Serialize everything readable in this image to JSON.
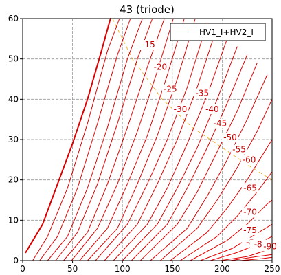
{
  "chart_data": {
    "type": "line",
    "title": "43 (triode)",
    "xlabel": "",
    "ylabel": "",
    "xlim": [
      0,
      250
    ],
    "ylim": [
      0,
      60
    ],
    "xticks": [
      0,
      50,
      100,
      150,
      200,
      250
    ],
    "yticks": [
      0,
      10,
      20,
      30,
      40,
      50,
      60
    ],
    "grid": true,
    "legend_position": "top-right",
    "legend": [
      "HV1_I+HV2_I"
    ],
    "colors": {
      "curve": "#dd0000",
      "load_line": "#f0a000",
      "grid": "#999999"
    },
    "series": [
      {
        "name": "HV1_I+HV2_I",
        "grid_voltage_label": "0",
        "x": [
          3,
          20,
          35,
          50,
          65,
          79,
          88
        ],
        "y": [
          2,
          9,
          19,
          29,
          40,
          52,
          60
        ]
      },
      {
        "grid_voltage_label": "",
        "x": [
          10,
          25,
          45,
          65,
          85,
          97
        ],
        "y": [
          0,
          6,
          18,
          34,
          52,
          60
        ]
      },
      {
        "grid_voltage_label": "",
        "x": [
          17,
          35,
          55,
          75,
          95,
          108
        ],
        "y": [
          0,
          6,
          18,
          34,
          51,
          60
        ]
      },
      {
        "grid_voltage_label": "",
        "x": [
          25,
          45,
          65,
          85,
          105,
          120
        ],
        "y": [
          0,
          6,
          18,
          33,
          50,
          60
        ]
      },
      {
        "grid_voltage_label": "",
        "x": [
          33,
          55,
          75,
          95,
          115,
          130
        ],
        "y": [
          0,
          7,
          19,
          34,
          50,
          60
        ]
      },
      {
        "grid_voltage_label": "",
        "x": [
          41,
          65,
          85,
          105,
          125,
          142
        ],
        "y": [
          0,
          7,
          19,
          33,
          48,
          60
        ]
      },
      {
        "grid_voltage_label": "-15",
        "x": [
          49,
          75,
          95,
          115,
          135,
          151
        ],
        "y": [
          0,
          8,
          19,
          32,
          47,
          60
        ]
      },
      {
        "grid_voltage_label": "-20",
        "x": [
          57,
          85,
          105,
          125,
          145,
          162
        ],
        "y": [
          0,
          8,
          19,
          31,
          46,
          60
        ]
      },
      {
        "grid_voltage_label": "-25",
        "x": [
          65,
          95,
          115,
          135,
          155,
          173
        ],
        "y": [
          0,
          8,
          19,
          31,
          45,
          60
        ]
      },
      {
        "grid_voltage_label": "-30",
        "x": [
          73,
          105,
          125,
          145,
          165,
          185
        ],
        "y": [
          0,
          9,
          19,
          30,
          43,
          59
        ]
      },
      {
        "grid_voltage_label": "-35",
        "x": [
          82,
          115,
          135,
          155,
          175,
          195
        ],
        "y": [
          0,
          9,
          19,
          30,
          43,
          58
        ]
      },
      {
        "grid_voltage_label": "-40",
        "x": [
          91,
          125,
          145,
          165,
          185,
          205
        ],
        "y": [
          0,
          9,
          18,
          29,
          41,
          55
        ]
      },
      {
        "grid_voltage_label": "-45",
        "x": [
          100,
          135,
          155,
          175,
          195,
          215
        ],
        "y": [
          0,
          9,
          18,
          28,
          40,
          53
        ]
      },
      {
        "grid_voltage_label": "-50",
        "x": [
          109,
          145,
          165,
          185,
          205,
          225
        ],
        "y": [
          0,
          9,
          18,
          28,
          39,
          51
        ]
      },
      {
        "grid_voltage_label": "-55",
        "x": [
          118,
          155,
          175,
          195,
          215,
          235
        ],
        "y": [
          0,
          9,
          17,
          27,
          37,
          49
        ]
      },
      {
        "grid_voltage_label": "-60",
        "x": [
          128,
          165,
          185,
          205,
          225,
          245
        ],
        "y": [
          0,
          8,
          16,
          25,
          35,
          46
        ]
      },
      {
        "grid_voltage_label": "-65",
        "x": [
          138,
          175,
          195,
          215,
          235,
          250
        ],
        "y": [
          0,
          8,
          15,
          23,
          32,
          40
        ]
      },
      {
        "grid_voltage_label": "-70",
        "x": [
          148,
          185,
          205,
          225,
          245,
          250
        ],
        "y": [
          0,
          7,
          13,
          20,
          28,
          30
        ]
      },
      {
        "grid_voltage_label": "-75",
        "x": [
          158,
          195,
          215,
          235,
          250
        ],
        "y": [
          0,
          6,
          11,
          17,
          22
        ]
      },
      {
        "grid_voltage_label": "-80",
        "x": [
          168,
          205,
          225,
          245,
          250
        ],
        "y": [
          0,
          5,
          9,
          14,
          15
        ]
      },
      {
        "grid_voltage_label": "-85",
        "x": [
          178,
          210,
          230,
          250
        ],
        "y": [
          0,
          3,
          6,
          9
        ]
      },
      {
        "grid_voltage_label": "-90",
        "x": [
          188,
          215,
          235,
          250
        ],
        "y": [
          0,
          2,
          4,
          6
        ]
      },
      {
        "grid_voltage_label": "",
        "x": [
          198,
          225,
          250
        ],
        "y": [
          0,
          1,
          3
        ]
      },
      {
        "grid_voltage_label": "",
        "x": [
          208,
          235,
          250
        ],
        "y": [
          0,
          1,
          1.5
        ]
      },
      {
        "grid_voltage_label": "",
        "x": [
          218,
          240,
          250
        ],
        "y": [
          0,
          0.5,
          0.8
        ]
      }
    ],
    "load_line": {
      "x": [
        90,
        110,
        140,
        170,
        200,
        230,
        250
      ],
      "y": [
        60,
        50,
        40,
        33,
        28,
        23,
        20
      ]
    },
    "annotations": [
      {
        "text": "-15",
        "x": 126,
        "y": 53
      },
      {
        "text": "-20",
        "x": 138,
        "y": 47.5
      },
      {
        "text": "-25",
        "x": 148,
        "y": 42
      },
      {
        "text": "-30",
        "x": 158,
        "y": 37
      },
      {
        "text": "-35",
        "x": 180,
        "y": 41
      },
      {
        "text": "-40",
        "x": 190,
        "y": 37
      },
      {
        "text": "-45",
        "x": 198,
        "y": 33.5
      },
      {
        "text": "-50",
        "x": 208,
        "y": 30
      },
      {
        "text": "-55",
        "x": 217,
        "y": 27
      },
      {
        "text": "-60",
        "x": 227,
        "y": 24.5
      },
      {
        "text": "-65",
        "x": 228,
        "y": 17.5
      },
      {
        "text": "-70",
        "x": 228,
        "y": 11.5
      },
      {
        "text": "-75",
        "x": 228,
        "y": 7
      },
      {
        "text": "-8",
        "x": 228,
        "y": 4
      },
      {
        "text": "-8",
        "x": 236,
        "y": 3.5
      },
      {
        "text": "-90",
        "x": 248,
        "y": 3
      }
    ]
  }
}
